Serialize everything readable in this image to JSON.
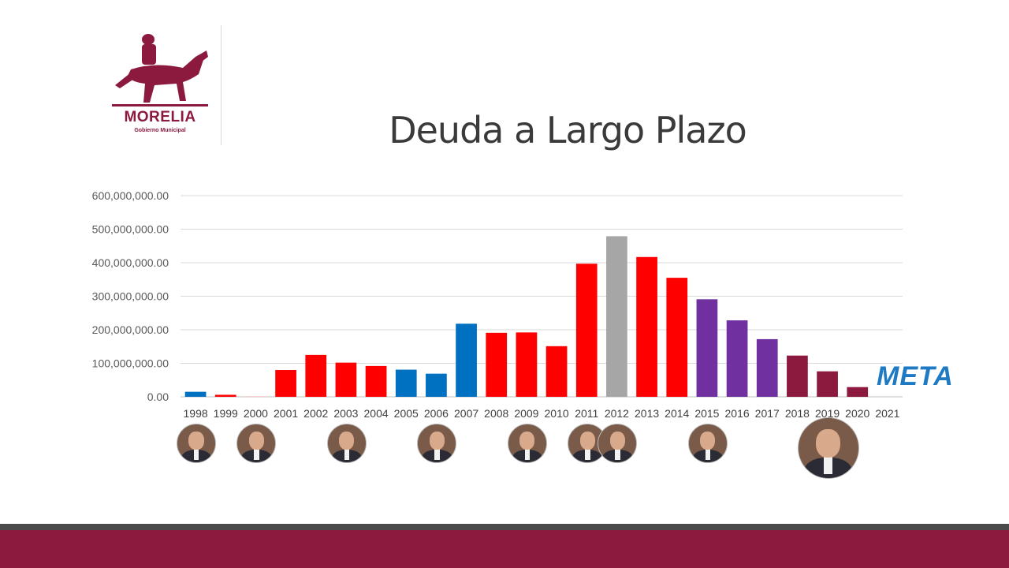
{
  "logo": {
    "word": "MORELIA",
    "sub": "Gobierno Municipal",
    "color": "#8b1a3e"
  },
  "slide": {
    "title": "Deuda a Largo Plazo",
    "meta_label": "META"
  },
  "chart_data": {
    "type": "bar",
    "title": "Deuda a Largo Plazo",
    "categories": [
      "1998",
      "1999",
      "2000",
      "2001",
      "2002",
      "2003",
      "2004",
      "2005",
      "2006",
      "2007",
      "2008",
      "2009",
      "2010",
      "2011",
      "2012",
      "2013",
      "2014",
      "2015",
      "2016",
      "2017",
      "2018",
      "2019",
      "2020",
      "2021"
    ],
    "values": [
      15000000,
      6000000,
      2000000,
      80000000,
      125000000,
      102000000,
      92000000,
      81000000,
      69000000,
      218000000,
      191000000,
      192000000,
      151000000,
      397000000,
      479000000,
      417000000,
      355000000,
      291000000,
      228000000,
      172000000,
      123000000,
      76000000,
      29000000,
      0
    ],
    "colors": [
      "#0070c0",
      "#ff0000",
      "#ffc7c7",
      "#ff0000",
      "#ff0000",
      "#ff0000",
      "#ff0000",
      "#0070c0",
      "#0070c0",
      "#0070c0",
      "#ff0000",
      "#ff0000",
      "#ff0000",
      "#ff0000",
      "#a6a6a6",
      "#ff0000",
      "#ff0000",
      "#7030a0",
      "#7030a0",
      "#7030a0",
      "#8b1a3e",
      "#8b1a3e",
      "#8b1a3e",
      "#8b1a3e"
    ],
    "yticks": [
      "0.00",
      "100,000,000.00",
      "200,000,000.00",
      "300,000,000.00",
      "400,000,000.00",
      "500,000,000.00",
      "600,000,000.00"
    ],
    "ylim": [
      0,
      600000000
    ],
    "grid": true,
    "legend": "none",
    "xlabel": "",
    "ylabel": ""
  },
  "portraits": [
    {
      "name": "portrait-1998",
      "category": "1998",
      "large": false
    },
    {
      "name": "portrait-2000",
      "category": "2000",
      "large": false
    },
    {
      "name": "portrait-2003",
      "category": "2003",
      "large": false
    },
    {
      "name": "portrait-2006",
      "category": "2006",
      "large": false
    },
    {
      "name": "portrait-2009",
      "category": "2009",
      "large": false
    },
    {
      "name": "portrait-2011",
      "category": "2011",
      "large": false
    },
    {
      "name": "portrait-2012",
      "category": "2012",
      "large": false
    },
    {
      "name": "portrait-2015",
      "category": "2015",
      "large": false
    },
    {
      "name": "portrait-2019",
      "category": "2019",
      "large": true
    }
  ]
}
